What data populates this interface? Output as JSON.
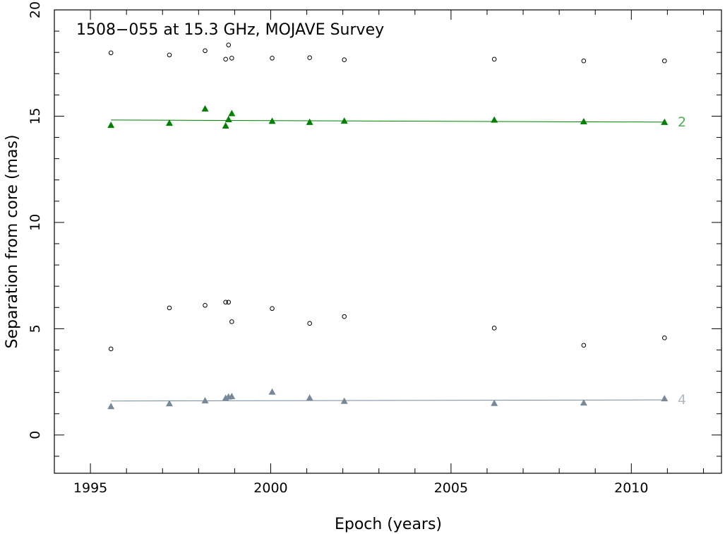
{
  "chart_data": {
    "type": "scatter",
    "title": "1508−055 at 15.3 GHz, MOJAVE Survey",
    "xlabel": "Epoch (years)",
    "ylabel": "Separation from core (mas)",
    "xlim": [
      1994.0,
      2012.5
    ],
    "ylim": [
      -1.8,
      20.0
    ],
    "xticks": [
      1995,
      2000,
      2005,
      2010
    ],
    "xtick_labels": [
      "1995",
      "2000",
      "2005",
      "2010"
    ],
    "yticks": [
      0,
      5,
      10,
      15,
      20
    ],
    "ytick_labels": [
      "0",
      "5",
      "10",
      "15",
      "20"
    ],
    "grid": false,
    "series": [
      {
        "name": "2",
        "marker": "triangle",
        "color": "#008000",
        "x": [
          1995.57,
          1997.19,
          1998.18,
          1998.75,
          1998.83,
          1998.92,
          2000.04,
          2001.08,
          2002.04,
          2006.2,
          2008.68,
          2010.92
        ],
        "y": [
          14.58,
          14.68,
          15.35,
          14.55,
          14.85,
          15.13,
          14.77,
          14.72,
          14.78,
          14.83,
          14.75,
          14.72
        ],
        "fit": {
          "x": [
            1995.57,
            2010.92
          ],
          "y": [
            14.82,
            14.72
          ]
        }
      },
      {
        "name": "4",
        "marker": "triangle",
        "color": "#778899",
        "x": [
          1995.57,
          1997.19,
          1998.18,
          1998.75,
          1998.83,
          1998.92,
          2000.04,
          2001.08,
          2002.04,
          2006.2,
          2008.68,
          2010.92
        ],
        "y": [
          1.35,
          1.48,
          1.62,
          1.74,
          1.8,
          1.82,
          2.03,
          1.75,
          1.6,
          1.5,
          1.52,
          1.72
        ],
        "fit": {
          "x": [
            1995.57,
            2010.92
          ],
          "y": [
            1.6,
            1.65
          ]
        }
      },
      {
        "name": "",
        "marker": "open-circle",
        "color": "#000000",
        "x": [
          1995.57,
          1997.19,
          1998.18,
          1998.75,
          1998.83,
          1998.92,
          2000.04,
          2001.08,
          2002.04,
          2006.2,
          2008.68,
          2010.92,
          1995.57,
          1997.19,
          1998.18,
          1998.75,
          1998.83,
          1998.92,
          2000.04,
          2001.08,
          2002.04,
          2006.2,
          2008.68,
          2010.92
        ],
        "y": [
          17.98,
          17.88,
          18.08,
          17.68,
          18.35,
          17.73,
          17.73,
          17.75,
          17.65,
          17.68,
          17.6,
          17.6,
          4.05,
          5.98,
          6.1,
          6.25,
          6.25,
          5.33,
          5.95,
          5.25,
          5.57,
          5.03,
          4.22,
          4.57
        ]
      }
    ]
  }
}
